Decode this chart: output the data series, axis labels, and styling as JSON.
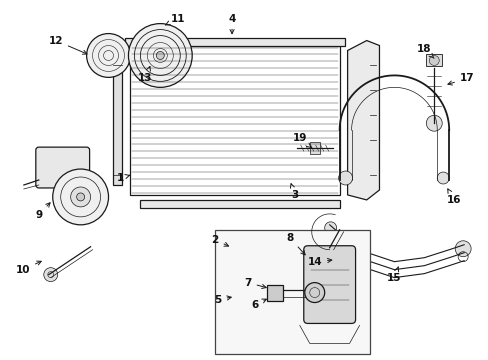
{
  "bg_color": "#ffffff",
  "line_color": "#1a1a1a",
  "label_color": "#111111",
  "lw_thin": 0.5,
  "lw_med": 0.9,
  "lw_thick": 1.3
}
